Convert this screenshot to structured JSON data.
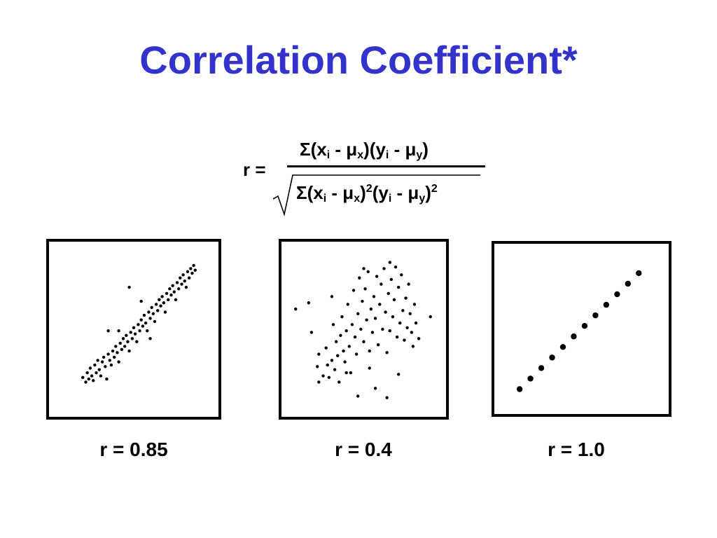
{
  "title": "Correlation Coefficient*",
  "colors": {
    "title": "#3333cc",
    "text": "#000000",
    "points": "#000000"
  },
  "formula": {
    "lhs": "r =",
    "numerator": {
      "sigma": "Σ",
      "p1": "(x",
      "s1": "i",
      "p2": " - ",
      "mu1": "μ",
      "s2": "x",
      "p3": ")(y",
      "s3": "i",
      "p4": " - ",
      "mu2": "μ",
      "s4": "y",
      "p5": ")"
    },
    "denominator": {
      "sigma": "Σ",
      "p1": "(x",
      "s1": "i",
      "p2": " - ",
      "mu1": "μ",
      "s2": "x",
      "p3": ")",
      "e1": "2",
      "p4": "(y",
      "s3": "i",
      "p5": " - ",
      "mu2": "μ",
      "s4": "y",
      "p6": ")",
      "e2": "2"
    }
  },
  "chart_data": [
    {
      "type": "scatter",
      "caption": "r = 0.85",
      "xlim": [
        0,
        10
      ],
      "ylim": [
        0,
        10
      ],
      "points": [
        [
          1.6,
          1.9
        ],
        [
          1.8,
          1.6
        ],
        [
          1.9,
          2.2
        ],
        [
          2.0,
          1.8
        ],
        [
          2.1,
          2.5
        ],
        [
          2.2,
          2.0
        ],
        [
          2.3,
          1.7
        ],
        [
          2.4,
          2.7
        ],
        [
          2.5,
          2.2
        ],
        [
          2.6,
          3.0
        ],
        [
          2.7,
          2.4
        ],
        [
          2.8,
          2.0
        ],
        [
          2.9,
          2.9
        ],
        [
          3.0,
          3.2
        ],
        [
          3.1,
          2.6
        ],
        [
          3.2,
          1.8
        ],
        [
          3.3,
          3.4
        ],
        [
          3.4,
          3.0
        ],
        [
          3.5,
          2.7
        ],
        [
          3.6,
          3.6
        ],
        [
          3.7,
          3.2
        ],
        [
          3.8,
          3.9
        ],
        [
          3.9,
          3.5
        ],
        [
          4.0,
          2.9
        ],
        [
          4.1,
          4.1
        ],
        [
          4.2,
          3.7
        ],
        [
          4.3,
          4.4
        ],
        [
          4.4,
          3.9
        ],
        [
          4.5,
          4.6
        ],
        [
          4.6,
          4.2
        ],
        [
          4.7,
          3.6
        ],
        [
          4.8,
          4.8
        ],
        [
          4.9,
          4.4
        ],
        [
          5.0,
          5.1
        ],
        [
          5.1,
          4.7
        ],
        [
          5.2,
          4.2
        ],
        [
          5.3,
          5.3
        ],
        [
          5.4,
          4.9
        ],
        [
          5.5,
          5.6
        ],
        [
          5.6,
          5.2
        ],
        [
          5.7,
          5.9
        ],
        [
          5.8,
          5.4
        ],
        [
          5.9,
          4.9
        ],
        [
          6.0,
          6.1
        ],
        [
          6.1,
          5.7
        ],
        [
          6.2,
          6.4
        ],
        [
          6.3,
          6.0
        ],
        [
          6.4,
          5.5
        ],
        [
          6.5,
          6.6
        ],
        [
          6.6,
          6.2
        ],
        [
          6.7,
          6.9
        ],
        [
          6.8,
          6.5
        ],
        [
          6.9,
          7.1
        ],
        [
          7.0,
          6.7
        ],
        [
          7.1,
          6.1
        ],
        [
          7.2,
          7.3
        ],
        [
          7.3,
          6.9
        ],
        [
          7.4,
          7.6
        ],
        [
          7.5,
          7.2
        ],
        [
          7.6,
          7.8
        ],
        [
          7.7,
          7.4
        ],
        [
          7.8,
          6.9
        ],
        [
          7.9,
          8.0
        ],
        [
          8.0,
          7.6
        ],
        [
          8.1,
          8.3
        ],
        [
          8.2,
          7.9
        ],
        [
          8.3,
          8.5
        ],
        [
          8.4,
          8.1
        ],
        [
          8.5,
          7.7
        ],
        [
          8.6,
          8.7
        ],
        [
          8.7,
          8.3
        ],
        [
          8.8,
          8.9
        ],
        [
          8.9,
          8.6
        ],
        [
          9.0,
          9.1
        ],
        [
          9.1,
          8.8
        ],
        [
          4.7,
          7.7
        ],
        [
          3.3,
          4.9
        ],
        [
          6.1,
          4.4
        ],
        [
          5.5,
          6.8
        ],
        [
          4.0,
          4.9
        ]
      ]
    },
    {
      "type": "scatter",
      "caption": "r = 0.4",
      "xlim": [
        0,
        10
      ],
      "ylim": [
        0,
        10
      ],
      "points": [
        [
          0.3,
          6.3
        ],
        [
          9.6,
          5.8
        ],
        [
          1.4,
          4.8
        ],
        [
          1.9,
          3.4
        ],
        [
          1.8,
          2.6
        ],
        [
          1.9,
          1.6
        ],
        [
          2.2,
          2.0
        ],
        [
          2.4,
          3.8
        ],
        [
          2.5,
          2.7
        ],
        [
          2.6,
          1.9
        ],
        [
          2.8,
          3.0
        ],
        [
          2.9,
          5.3
        ],
        [
          3.0,
          2.4
        ],
        [
          3.1,
          4.2
        ],
        [
          3.2,
          3.3
        ],
        [
          3.3,
          1.6
        ],
        [
          3.4,
          4.6
        ],
        [
          3.5,
          5.8
        ],
        [
          3.6,
          3.6
        ],
        [
          3.7,
          2.9
        ],
        [
          3.8,
          4.9
        ],
        [
          3.9,
          6.6
        ],
        [
          4.0,
          3.9
        ],
        [
          4.1,
          2.2
        ],
        [
          4.2,
          5.3
        ],
        [
          4.3,
          7.5
        ],
        [
          4.4,
          4.5
        ],
        [
          4.5,
          3.4
        ],
        [
          4.6,
          6.0
        ],
        [
          4.7,
          8.3
        ],
        [
          4.8,
          5.0
        ],
        [
          4.9,
          6.8
        ],
        [
          5.0,
          4.2
        ],
        [
          5.1,
          7.6
        ],
        [
          5.2,
          5.6
        ],
        [
          5.3,
          8.7
        ],
        [
          5.4,
          3.6
        ],
        [
          5.5,
          6.3
        ],
        [
          5.6,
          4.8
        ],
        [
          5.7,
          7.1
        ],
        [
          5.8,
          5.7
        ],
        [
          5.9,
          8.4
        ],
        [
          6.0,
          4.0
        ],
        [
          6.1,
          6.6
        ],
        [
          6.2,
          7.9
        ],
        [
          6.3,
          5.0
        ],
        [
          6.4,
          8.9
        ],
        [
          6.5,
          6.1
        ],
        [
          6.6,
          3.5
        ],
        [
          6.7,
          7.3
        ],
        [
          6.8,
          4.9
        ],
        [
          6.9,
          8.2
        ],
        [
          7.0,
          5.8
        ],
        [
          7.1,
          6.9
        ],
        [
          7.2,
          9.0
        ],
        [
          7.3,
          4.5
        ],
        [
          7.4,
          7.7
        ],
        [
          7.5,
          5.4
        ],
        [
          7.6,
          8.5
        ],
        [
          7.7,
          6.2
        ],
        [
          7.8,
          4.3
        ],
        [
          7.9,
          7.0
        ],
        [
          8.0,
          5.1
        ],
        [
          8.1,
          7.9
        ],
        [
          8.2,
          6.0
        ],
        [
          8.3,
          4.8
        ],
        [
          8.4,
          3.9
        ],
        [
          8.5,
          6.6
        ],
        [
          8.6,
          5.4
        ],
        [
          8.8,
          4.4
        ],
        [
          4.6,
          0.7
        ],
        [
          5.4,
          2.5
        ],
        [
          5.8,
          1.2
        ],
        [
          6.6,
          0.6
        ],
        [
          7.4,
          2.1
        ],
        [
          1.2,
          6.7
        ],
        [
          2.8,
          7.1
        ],
        [
          3.8,
          2.2
        ],
        [
          5.0,
          8.9
        ],
        [
          6.8,
          9.3
        ]
      ]
    },
    {
      "type": "scatter",
      "caption": "r = 1.0",
      "xlim": [
        0,
        10
      ],
      "ylim": [
        0,
        10
      ],
      "points": [
        [
          1,
          1
        ],
        [
          1.7,
          1.7
        ],
        [
          2.4,
          2.4
        ],
        [
          3.1,
          3.1
        ],
        [
          3.8,
          3.8
        ],
        [
          4.5,
          4.5
        ],
        [
          5.2,
          5.2
        ],
        [
          5.9,
          5.9
        ],
        [
          6.6,
          6.6
        ],
        [
          7.3,
          7.3
        ],
        [
          8.0,
          8.0
        ],
        [
          8.7,
          8.7
        ]
      ]
    }
  ]
}
